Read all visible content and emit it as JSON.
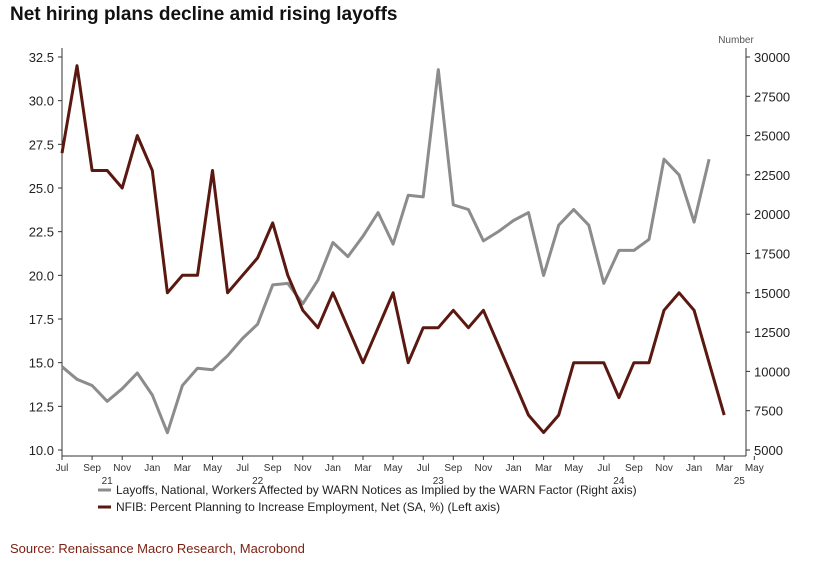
{
  "title": "Net hiring plans decline amid rising layoffs",
  "source": "Source: Renaissance Macro Research, Macrobond",
  "chart_data": {
    "type": "line",
    "right_axis_unit": "Number",
    "left_axis": {
      "ylim": [
        10.0,
        32.5
      ],
      "ticks": [
        "10.0",
        "12.5",
        "15.0",
        "17.5",
        "20.0",
        "22.5",
        "25.0",
        "27.5",
        "30.0",
        "32.5"
      ]
    },
    "right_axis": {
      "ylim": [
        5000,
        30000
      ],
      "ticks": [
        "5000",
        "7500",
        "10000",
        "12500",
        "15000",
        "17500",
        "20000",
        "22500",
        "25000",
        "27500",
        "30000"
      ]
    },
    "x_ticks": [
      {
        "label": "Jul",
        "year": ""
      },
      {
        "label": "Sep",
        "year": "21"
      },
      {
        "label": "Nov",
        "year": ""
      },
      {
        "label": "Jan",
        "year": ""
      },
      {
        "label": "Mar",
        "year": ""
      },
      {
        "label": "May",
        "year": ""
      },
      {
        "label": "Jul",
        "year": "22"
      },
      {
        "label": "Sep",
        "year": ""
      },
      {
        "label": "Nov",
        "year": ""
      },
      {
        "label": "Jan",
        "year": ""
      },
      {
        "label": "Mar",
        "year": ""
      },
      {
        "label": "May",
        "year": ""
      },
      {
        "label": "Jul",
        "year": "23"
      },
      {
        "label": "Sep",
        "year": ""
      },
      {
        "label": "Nov",
        "year": ""
      },
      {
        "label": "Jan",
        "year": ""
      },
      {
        "label": "Mar",
        "year": ""
      },
      {
        "label": "May",
        "year": ""
      },
      {
        "label": "Jul",
        "year": "24"
      },
      {
        "label": "Sep",
        "year": ""
      },
      {
        "label": "Nov",
        "year": ""
      },
      {
        "label": "Jan",
        "year": ""
      },
      {
        "label": "Mar",
        "year": "25"
      },
      {
        "label": "May",
        "year": ""
      }
    ],
    "x": [
      "2021-07",
      "2021-08",
      "2021-09",
      "2021-10",
      "2021-11",
      "2021-12",
      "2022-01",
      "2022-02",
      "2022-03",
      "2022-04",
      "2022-05",
      "2022-06",
      "2022-07",
      "2022-08",
      "2022-09",
      "2022-10",
      "2022-11",
      "2022-12",
      "2023-01",
      "2023-02",
      "2023-03",
      "2023-04",
      "2023-05",
      "2023-06",
      "2023-07",
      "2023-08",
      "2023-09",
      "2023-10",
      "2023-11",
      "2023-12",
      "2024-01",
      "2024-02",
      "2024-03",
      "2024-04",
      "2024-05",
      "2024-06",
      "2024-07",
      "2024-08",
      "2024-09",
      "2024-10",
      "2024-11",
      "2024-12",
      "2025-01",
      "2025-02",
      "2025-03"
    ],
    "series": [
      {
        "name": "Layoffs, National, Workers Affected by WARN Notices as Implied by the WARN Factor (Right axis)",
        "axis": "right",
        "color": "#8c8c8c",
        "values": [
          10300,
          9500,
          9100,
          8100,
          8900,
          9900,
          8500,
          6100,
          9100,
          10200,
          10100,
          11000,
          12100,
          13000,
          15500,
          15600,
          14300,
          15800,
          18200,
          17300,
          18600,
          20100,
          18100,
          21200,
          21100,
          29200,
          20600,
          20300,
          18300,
          18900,
          19600,
          20100,
          16100,
          19300,
          20300,
          19300,
          15600,
          17700,
          17700,
          18400,
          23500,
          22500,
          19500,
          23500,
          null
        ]
      },
      {
        "name": "NFIB: Percent Planning to Increase Employment, Net (SA, %) (Left axis)",
        "axis": "left",
        "color": "#5a1810",
        "values": [
          27,
          32,
          26,
          26,
          25,
          28,
          26,
          19,
          20,
          20,
          26,
          19,
          20,
          21,
          23,
          20,
          18,
          17,
          19,
          17,
          15,
          17,
          19,
          15,
          17,
          17,
          18,
          17,
          18,
          16,
          14,
          12,
          11,
          12,
          15,
          15,
          15,
          13,
          15,
          15,
          18,
          19,
          18,
          15,
          12
        ]
      }
    ]
  }
}
